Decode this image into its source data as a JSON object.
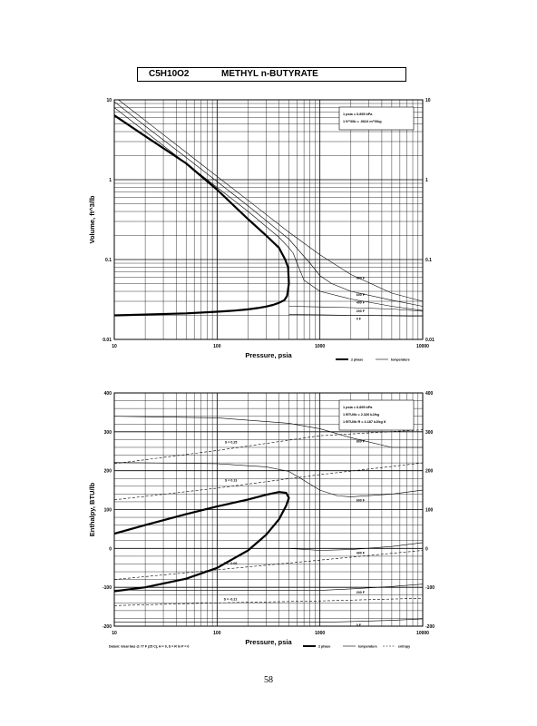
{
  "header": {
    "formula": "C5H10O2",
    "compound": "METHYL n-BUTYRATE"
  },
  "page_number": "58",
  "chart_data": [
    {
      "type": "line",
      "title": "",
      "xlabel": "Pressure,  psia",
      "ylabel": "Volume,  ft^3/lb",
      "x_scale": "log",
      "y_scale": "log",
      "xlim": [
        10,
        10000
      ],
      "ylim": [
        0.01,
        10
      ],
      "grid": true,
      "x_ticks": [
        "10",
        "100",
        "1000",
        "10000"
      ],
      "y_ticks": [
        "0.01",
        "0.1",
        "1",
        "10"
      ],
      "notes": [
        "1 psia = 6.895 kPa",
        "1 ft^3/lb = .0624 m^3/kg"
      ],
      "legend": [
        {
          "label": "2 phase",
          "style": "thick"
        },
        {
          "label": "temperature",
          "style": "thin"
        }
      ],
      "series": [
        {
          "name": "2 phase",
          "style": "thick",
          "x": [
            10,
            20,
            50,
            100,
            150,
            200,
            250,
            300,
            350,
            400,
            450,
            480,
            500,
            490,
            460,
            400,
            300,
            200,
            100,
            50,
            20,
            10
          ],
          "y": [
            0.02,
            0.0205,
            0.0212,
            0.0222,
            0.023,
            0.0238,
            0.0247,
            0.0258,
            0.027,
            0.0287,
            0.031,
            0.035,
            0.05,
            0.08,
            0.1,
            0.14,
            0.2,
            0.32,
            0.75,
            1.6,
            3.5,
            6.4
          ]
        },
        {
          "label": "800 F",
          "style": "thin",
          "x": [
            10,
            20,
            50,
            100,
            200,
            500,
            1000,
            2000,
            5000,
            10000
          ],
          "y": [
            11,
            5.5,
            2.2,
            1.1,
            0.55,
            0.22,
            0.115,
            0.065,
            0.038,
            0.03
          ]
        },
        {
          "label": "600 F",
          "style": "thin",
          "x": [
            10,
            20,
            50,
            100,
            200,
            500,
            800,
            1000,
            1300,
            2000,
            5000,
            10000
          ],
          "y": [
            9.5,
            4.7,
            1.9,
            0.95,
            0.47,
            0.18,
            0.09,
            0.063,
            0.05,
            0.04,
            0.031,
            0.026
          ]
        },
        {
          "label": "400 F",
          "style": "thin",
          "x": [
            10,
            20,
            50,
            100,
            200,
            400,
            500,
            550,
            600,
            700,
            1000,
            2000,
            5000,
            10000
          ],
          "y": [
            8,
            4,
            1.6,
            0.8,
            0.4,
            0.19,
            0.14,
            0.12,
            0.09,
            0.055,
            0.04,
            0.032,
            0.026,
            0.023
          ]
        },
        {
          "label": "200 F",
          "style": "thin",
          "x": [
            500,
            1000,
            2000,
            5000,
            10000
          ],
          "y": [
            0.026,
            0.0255,
            0.025,
            0.024,
            0.0225
          ]
        },
        {
          "label": "0 F",
          "style": "thin",
          "x": [
            500,
            1000,
            2000,
            5000,
            10000
          ],
          "y": [
            0.0205,
            0.0203,
            0.02,
            0.0198,
            0.0195
          ]
        }
      ]
    },
    {
      "type": "line",
      "title": "",
      "xlabel": "Pressure,  psia",
      "ylabel": "Enthalpy,  BTU/lb",
      "x_scale": "log",
      "y_scale": "linear",
      "xlim": [
        10,
        10000
      ],
      "ylim": [
        -200,
        400
      ],
      "grid": true,
      "x_ticks": [
        "10",
        "100",
        "1000",
        "10000"
      ],
      "y_ticks": [
        "-200",
        "-100",
        "0",
        "100",
        "200",
        "300",
        "400"
      ],
      "notes": [
        "1 psia = 6.895 kPa",
        "1 BTU/lb = 2.326 kJ/kg",
        "1 BTU/lb R = 4.187 kJ/kg K"
      ],
      "footnote": "Datum: Ideal Gas @ 77 F (25 C),  H = 0,  S = R ln P = 0",
      "legend": [
        {
          "label": "2 phase",
          "style": "thick"
        },
        {
          "label": "temperature",
          "style": "thin"
        },
        {
          "label": "entropy",
          "style": "dashed"
        }
      ],
      "series": [
        {
          "name": "2 phase",
          "style": "thick",
          "x": [
            10,
            20,
            50,
            100,
            200,
            300,
            400,
            470,
            500,
            470,
            400,
            300,
            200,
            100,
            50,
            20,
            10
          ],
          "y": [
            -110,
            -100,
            -78,
            -50,
            -5,
            35,
            75,
            110,
            130,
            143,
            145,
            138,
            126,
            108,
            88,
            60,
            38
          ]
        },
        {
          "label": "800 F",
          "style": "thin",
          "x": [
            10,
            100,
            500,
            1000,
            2000,
            5000,
            10000
          ],
          "y": [
            340,
            336,
            322,
            308,
            285,
            260,
            260
          ]
        },
        {
          "label": "600 F",
          "style": "thin",
          "x": [
            10,
            100,
            300,
            500,
            700,
            1000,
            1500,
            2000,
            5000,
            10000
          ],
          "y": [
            221,
            218,
            210,
            198,
            175,
            150,
            135,
            133,
            140,
            150
          ]
        },
        {
          "label": "400 F",
          "style": "thin",
          "x": [
            500,
            1000,
            2000,
            5000,
            10000
          ],
          "y": [
            0,
            -5,
            -3,
            5,
            15
          ]
        },
        {
          "label": "200 F",
          "style": "thin",
          "x": [
            10,
            1000,
            2000,
            5000,
            10000
          ],
          "y": [
            -107,
            -108,
            -104,
            -98,
            -92
          ]
        },
        {
          "label": "0 F",
          "style": "thin",
          "x": [
            10,
            1000,
            2000,
            5000,
            10000
          ],
          "y": [
            -190,
            -190,
            -188,
            -185,
            -181
          ]
        },
        {
          "label": "S = 0.25",
          "style": "dashed",
          "x": [
            10,
            100,
            1000,
            10000
          ],
          "y": [
            218,
            252,
            290,
            305
          ]
        },
        {
          "label": "S = 0.13",
          "style": "dashed",
          "x": [
            10,
            100,
            1000,
            10000
          ],
          "y": [
            125,
            155,
            190,
            220
          ]
        },
        {
          "label": "S = -0.06",
          "style": "dashed",
          "x": [
            10,
            100,
            1000,
            10000
          ],
          "y": [
            -80,
            -55,
            -30,
            -5
          ]
        },
        {
          "label": "S = -0.21",
          "style": "dashed",
          "x": [
            10,
            100,
            1000,
            10000
          ],
          "y": [
            -147,
            -140,
            -135,
            -128
          ]
        }
      ]
    }
  ]
}
